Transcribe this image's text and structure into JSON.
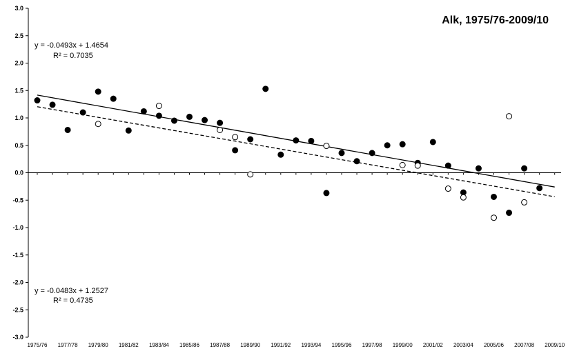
{
  "chart_data": {
    "type": "scatter",
    "title": "Alk, 1975/76-2009/10",
    "xlabel": "",
    "ylabel": "",
    "ylim": [
      -3.0,
      3.0
    ],
    "yticks": [
      "3.0",
      "2.5",
      "2.0",
      "1.5",
      "1.0",
      "0.5",
      "0.0",
      "-0.5",
      "-1.0",
      "-1.5",
      "-2.0",
      "-2.5",
      "-3.0"
    ],
    "ytick_values": [
      3.0,
      2.5,
      2.0,
      1.5,
      1.0,
      0.5,
      0.0,
      -0.5,
      -1.0,
      -1.5,
      -2.0,
      -2.5,
      -3.0
    ],
    "xlim": [
      1,
      35
    ],
    "xtick_labels": [
      "1975/76",
      "1977/78",
      "1979/80",
      "1981/82",
      "1983/84",
      "1985/86",
      "1987/88",
      "1989/90",
      "1991/92",
      "1993/94",
      "1995/96",
      "1997/98",
      "1999/00",
      "2001/02",
      "2003/04",
      "2005/06",
      "2007/08",
      "2009/10"
    ],
    "xtick_positions": [
      1,
      3,
      5,
      7,
      9,
      11,
      13,
      15,
      17,
      19,
      21,
      23,
      25,
      27,
      29,
      31,
      33,
      35
    ],
    "grid": false,
    "series": [
      {
        "marker": "filled",
        "points": [
          [
            1,
            1.32
          ],
          [
            2,
            1.24
          ],
          [
            3,
            0.78
          ],
          [
            4,
            1.1
          ],
          [
            5,
            1.48
          ],
          [
            6,
            1.35
          ],
          [
            7,
            0.77
          ],
          [
            8,
            1.12
          ],
          [
            9,
            1.04
          ],
          [
            10,
            0.95
          ],
          [
            11,
            1.02
          ],
          [
            12,
            0.96
          ],
          [
            13,
            0.91
          ],
          [
            14,
            0.41
          ],
          [
            15,
            0.61
          ],
          [
            16,
            1.53
          ],
          [
            17,
            0.33
          ],
          [
            18,
            0.59
          ],
          [
            19,
            0.58
          ],
          [
            20,
            -0.37
          ],
          [
            21,
            0.36
          ],
          [
            22,
            0.21
          ],
          [
            23,
            0.36
          ],
          [
            24,
            0.5
          ],
          [
            25,
            0.52
          ],
          [
            26,
            0.18
          ],
          [
            27,
            0.56
          ],
          [
            28,
            0.13
          ],
          [
            29,
            -0.36
          ],
          [
            30,
            0.08
          ],
          [
            31,
            -0.44
          ],
          [
            32,
            -0.73
          ],
          [
            33,
            0.08
          ],
          [
            34,
            -0.28
          ]
        ]
      },
      {
        "marker": "open",
        "points": [
          [
            5,
            0.89
          ],
          [
            9,
            1.22
          ],
          [
            13,
            0.78
          ],
          [
            14,
            0.65
          ],
          [
            15,
            -0.03
          ],
          [
            20,
            0.49
          ],
          [
            25,
            0.14
          ],
          [
            26,
            0.13
          ],
          [
            28,
            -0.29
          ],
          [
            29,
            -0.45
          ],
          [
            31,
            -0.82
          ],
          [
            32,
            1.03
          ],
          [
            33,
            -0.54
          ]
        ]
      }
    ],
    "trendlines": [
      {
        "series_index": 0,
        "style": "solid",
        "slope": -0.0493,
        "intercept": 1.4654,
        "equation": "y = -0.0493x + 1.4654",
        "r2": "R² = 0.7035"
      },
      {
        "series_index": 1,
        "style": "dashed",
        "slope": -0.0483,
        "intercept": 1.2527,
        "equation": "y = -0.0483x + 1.2527",
        "r2": "R² = 0.4735"
      }
    ]
  }
}
